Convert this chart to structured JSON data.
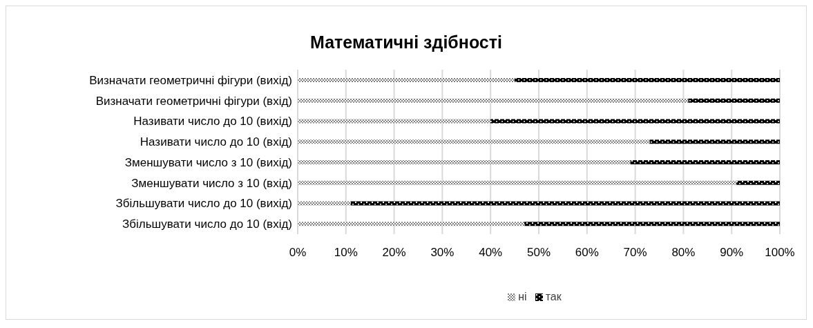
{
  "chart_data": {
    "type": "bar",
    "orientation": "horizontal",
    "stacked": true,
    "title": "Математичні здібності",
    "categories": [
      "Визначати геометричні фігури (вихід)",
      "Визначати геометричні фігури (вхід)",
      "Називати число до 10 (вихід)",
      "Називати число до 10 (вхід)",
      "Зменшувати число з 10  (вихід)",
      "Зменшувати число з 10  (вхід)",
      "Збільшувати число до 10 (вихід)",
      "Збільшувати число до 10 (вхід)"
    ],
    "series": [
      {
        "name": "ні",
        "color": "#808080",
        "values": [
          45,
          81,
          40,
          73,
          69,
          91,
          11,
          47
        ]
      },
      {
        "name": "так",
        "color": "#000000",
        "values": [
          55,
          19,
          60,
          27,
          31,
          9,
          89,
          53
        ]
      }
    ],
    "xlim": [
      0,
      100
    ],
    "xticks": [
      {
        "value": 0,
        "label": "0%"
      },
      {
        "value": 10,
        "label": "10%"
      },
      {
        "value": 20,
        "label": "20%"
      },
      {
        "value": 30,
        "label": "30%"
      },
      {
        "value": 40,
        "label": "40%"
      },
      {
        "value": 50,
        "label": "50%"
      },
      {
        "value": 60,
        "label": "60%"
      },
      {
        "value": 70,
        "label": "70%"
      },
      {
        "value": 80,
        "label": "80%"
      },
      {
        "value": 90,
        "label": "90%"
      },
      {
        "value": 100,
        "label": "100%"
      }
    ],
    "grid": "x",
    "legend": "bottom"
  }
}
